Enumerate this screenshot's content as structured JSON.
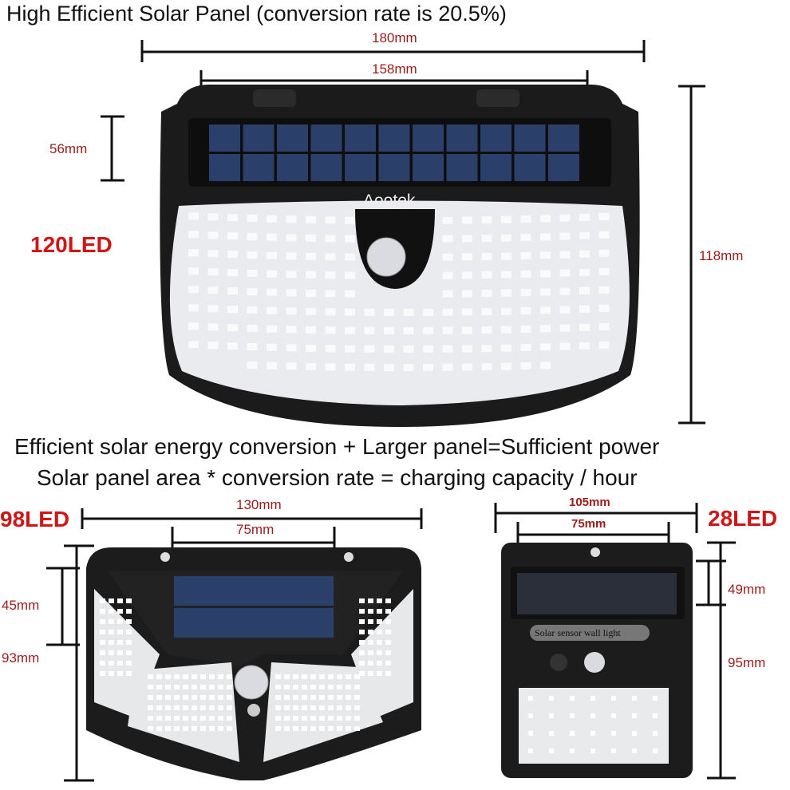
{
  "heading": "High Efficient Solar Panel (conversion rate is 20.5%)",
  "tagline_1": "Efficient solar energy conversion + Larger panel=Sufficient power",
  "tagline_2": "Solar panel area * conversion rate = charging capacity / hour",
  "colors": {
    "dimension_text": "#9b1b1b",
    "led_count_text": "#d01515",
    "body": "#1a1a1a",
    "solar_cell": "#2b3f6b"
  },
  "light_120": {
    "led_label": "120LED",
    "brand": "Aootek",
    "width_total": "180mm",
    "width_panel": "158mm",
    "panel_height": "56mm",
    "height_total": "118mm"
  },
  "light_98": {
    "led_label": "98LED",
    "width_total": "130mm",
    "width_panel": "75mm",
    "panel_height": "45mm",
    "height_total": "93mm"
  },
  "light_28": {
    "led_label": "28LED",
    "badge": "Solar sensor wall light",
    "width_total": "105mm",
    "width_panel": "75mm",
    "panel_height": "49mm",
    "height_total": "95mm"
  }
}
